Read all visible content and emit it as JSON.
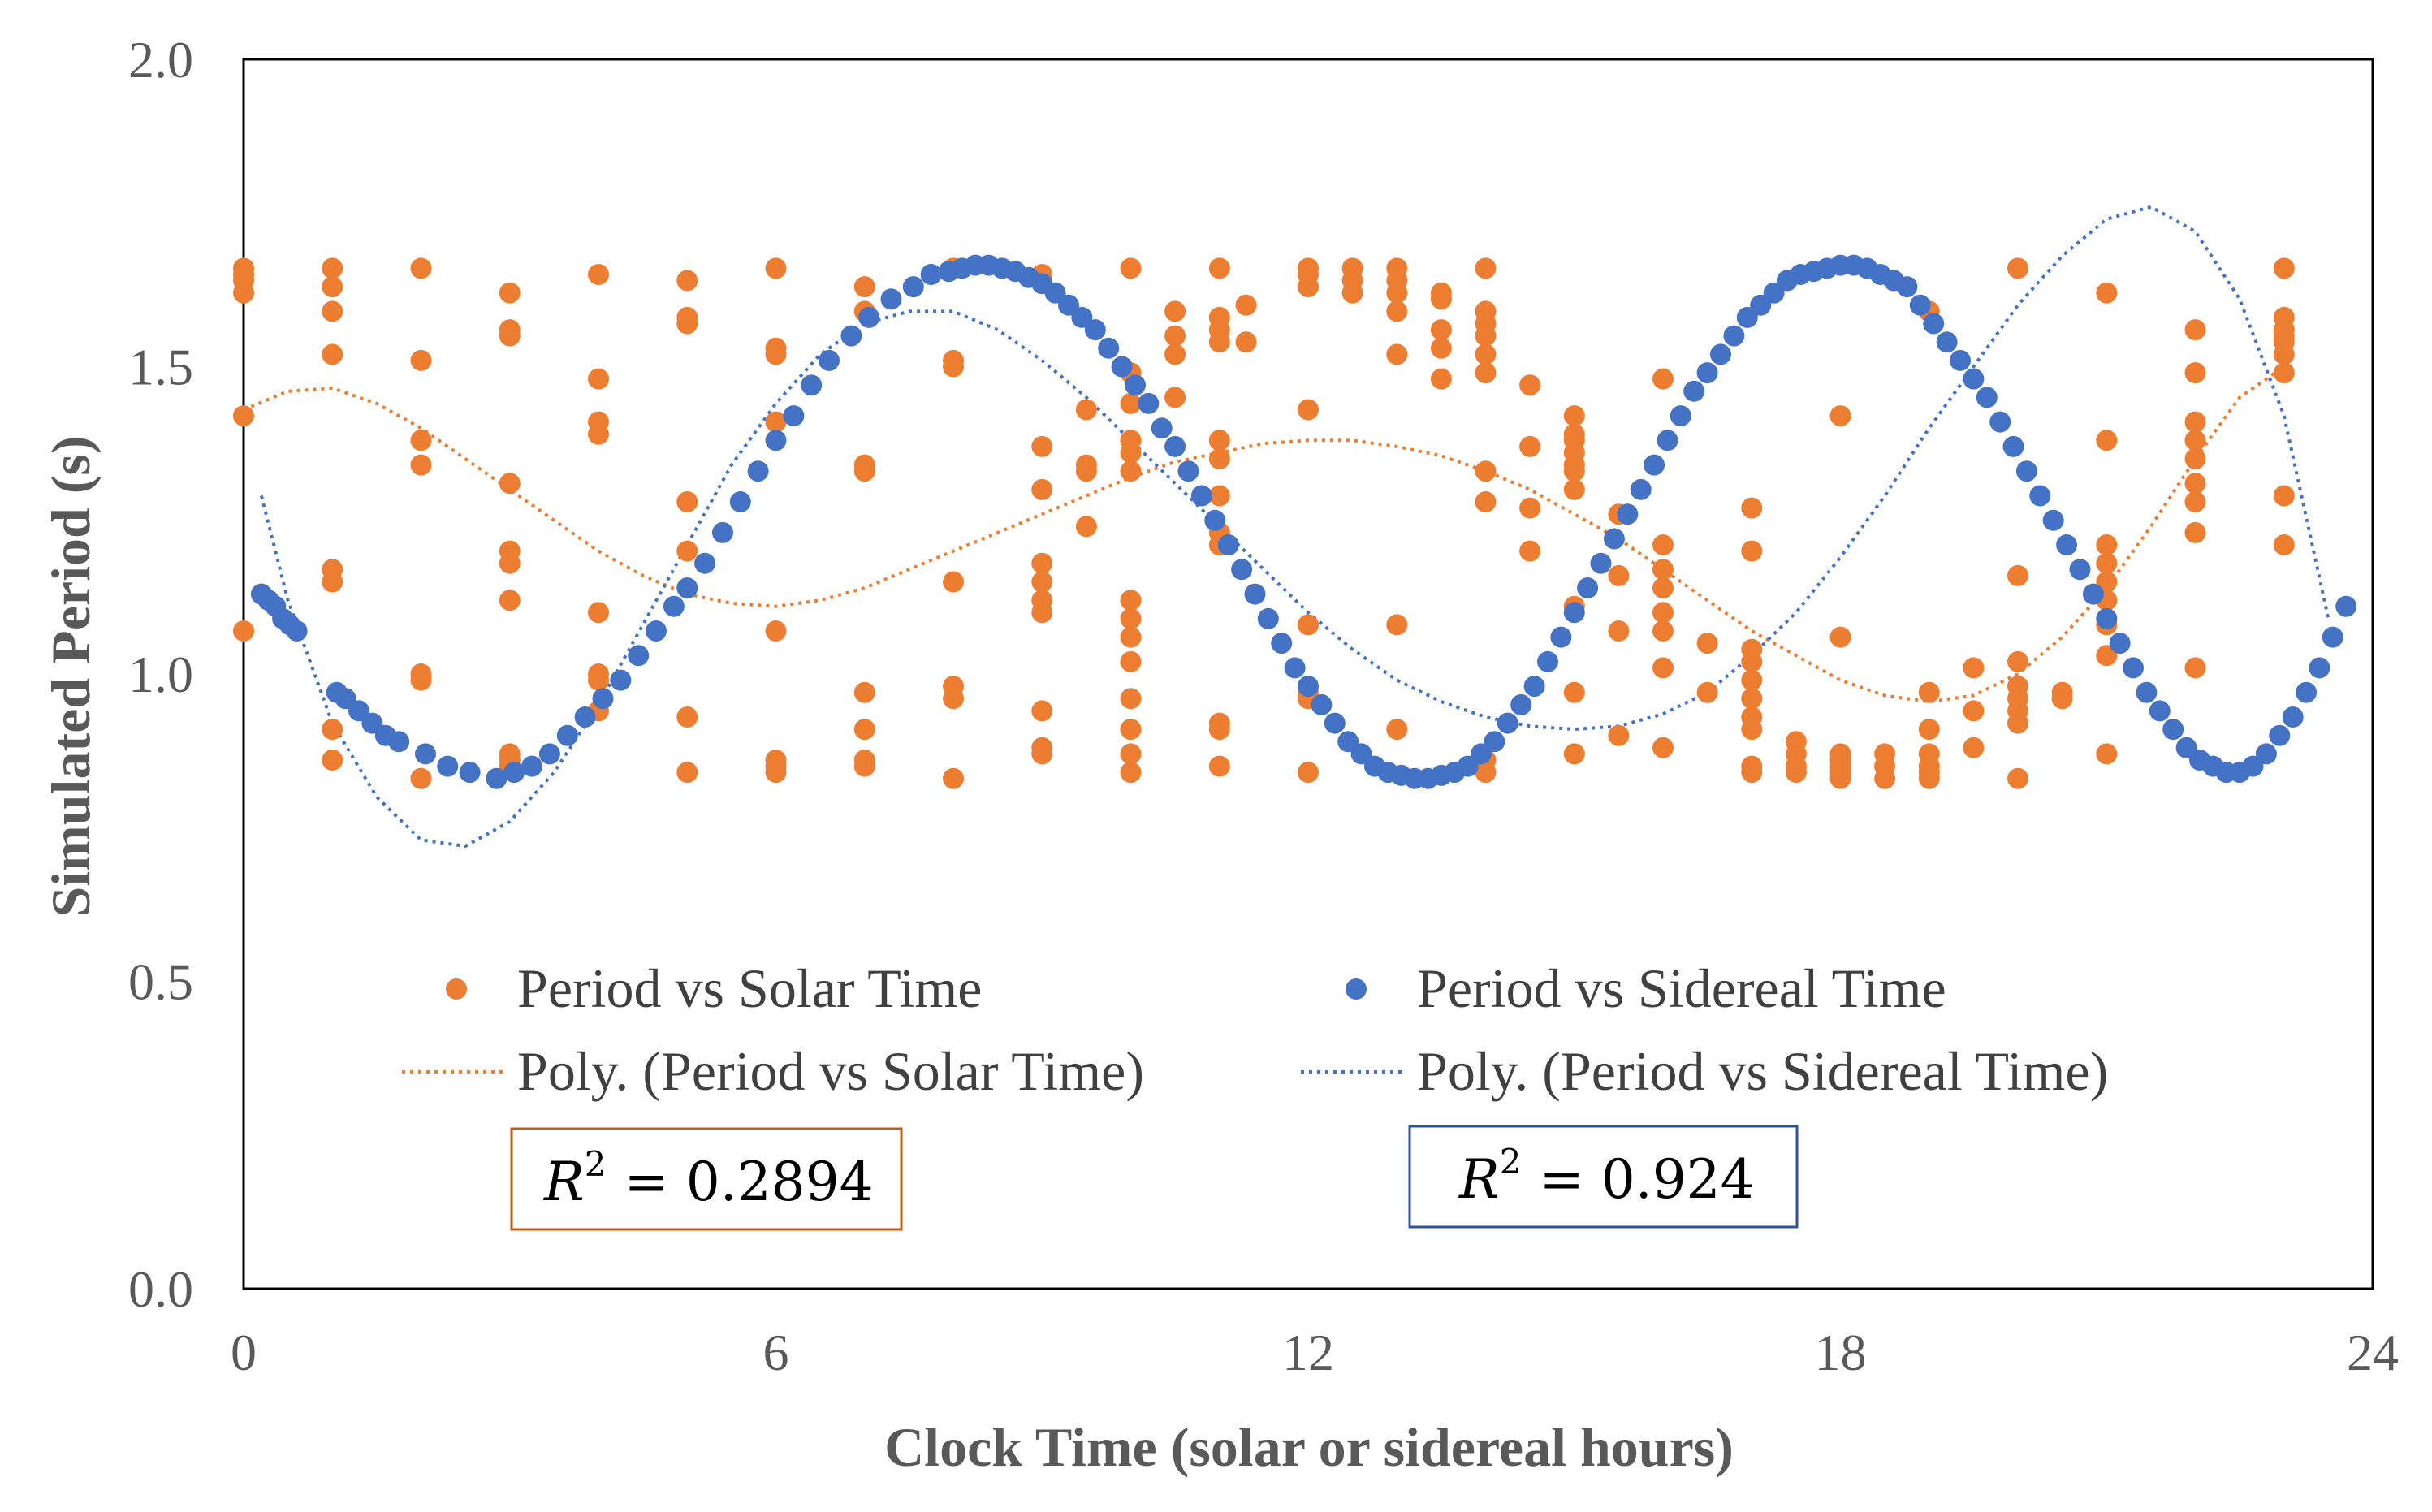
{
  "chart_data": {
    "type": "scatter",
    "xlabel": "Clock Time (solar or sidereal hours)",
    "ylabel": "Simulated Period (s)",
    "xlim": [
      0,
      24
    ],
    "ylim": [
      0.0,
      2.0
    ],
    "xticks": [
      0,
      6,
      12,
      18,
      24
    ],
    "xtick_labels": [
      "0",
      "6",
      "12",
      "18",
      "24"
    ],
    "yticks": [
      0.0,
      0.5,
      1.0,
      1.5,
      2.0
    ],
    "ytick_labels": [
      "0.0",
      "0.5",
      "1.0",
      "1.5",
      "2.0"
    ],
    "colors": {
      "solar": "#ED7D31",
      "sidereal": "#4472C4"
    },
    "series": [
      {
        "name": "Period vs Solar Time",
        "kind": "markers",
        "x": [
          0,
          0,
          0,
          0,
          0,
          0,
          1,
          1,
          1,
          1,
          1,
          1,
          1,
          1,
          2,
          2,
          2,
          2,
          2,
          2,
          2,
          3,
          3,
          3,
          3,
          3,
          3,
          3,
          3,
          3,
          3,
          4,
          4,
          4,
          4,
          4,
          4,
          4,
          4,
          5,
          5,
          5,
          5,
          5,
          5,
          5,
          6,
          6,
          6,
          6,
          6,
          6,
          6,
          6,
          7,
          7,
          7,
          7,
          7,
          7,
          7,
          7,
          8,
          8,
          8,
          8,
          8,
          8,
          8,
          9,
          9,
          9,
          9,
          9,
          9,
          9,
          9,
          9,
          9,
          9.5,
          9.5,
          9.5,
          9.5,
          10,
          10,
          10,
          10,
          10,
          10,
          10,
          10,
          10,
          10,
          10,
          10,
          10,
          10,
          10.5,
          10.5,
          10.5,
          10.5,
          11,
          11,
          11,
          11,
          11,
          11,
          11,
          11,
          11,
          11,
          11,
          11,
          11.3,
          11.3,
          12,
          12,
          12,
          12,
          12,
          12,
          12,
          12,
          12.5,
          12.5,
          12.5,
          13,
          13,
          13,
          13,
          13,
          13,
          13,
          13.5,
          13.5,
          13.5,
          13.5,
          13.5,
          14,
          14,
          14,
          14,
          14,
          14,
          14,
          14,
          14,
          14,
          14.5,
          14.5,
          14.5,
          14.5,
          15,
          15,
          15,
          15,
          15,
          15,
          15,
          15,
          15,
          15,
          15.5,
          15.5,
          15.5,
          15.5,
          16,
          16,
          16,
          16,
          16,
          16,
          16,
          16,
          16.5,
          16.5,
          17,
          17,
          17,
          17,
          17,
          17,
          17,
          17,
          17,
          17,
          17.5,
          17.5,
          17.5,
          17.5,
          18,
          18,
          18,
          18,
          18,
          18,
          18,
          18.5,
          18.5,
          18.5,
          19,
          19,
          19,
          19,
          19,
          19,
          19,
          19.5,
          19.5,
          19.5,
          20,
          20,
          20,
          20,
          20,
          20,
          20,
          20,
          20.5,
          20.5,
          21,
          21,
          21,
          21,
          21,
          21,
          21,
          21,
          21,
          22,
          22,
          22,
          22,
          22,
          22,
          22,
          22,
          22,
          23,
          23,
          23,
          23,
          23,
          23,
          23,
          23,
          23
        ],
        "y": [
          1.66,
          1.64,
          1.62,
          1.42,
          1.07,
          1.65,
          1.66,
          1.63,
          1.59,
          1.52,
          1.17,
          1.15,
          0.91,
          0.86,
          1.66,
          1.51,
          1.38,
          1.34,
          1.0,
          0.99,
          0.83,
          1.62,
          1.56,
          1.55,
          1.31,
          1.2,
          1.18,
          1.12,
          0.87,
          0.86,
          0.85,
          1.65,
          1.48,
          1.41,
          1.39,
          1.1,
          1.0,
          0.94,
          0.99,
          1.64,
          1.58,
          1.57,
          1.28,
          1.2,
          0.93,
          0.84,
          1.66,
          1.53,
          1.52,
          1.41,
          1.07,
          0.85,
          0.84,
          0.86,
          1.63,
          1.59,
          1.34,
          1.33,
          0.97,
          0.91,
          0.86,
          0.85,
          1.66,
          1.51,
          1.5,
          1.15,
          0.98,
          0.96,
          0.83,
          1.65,
          1.37,
          1.3,
          1.18,
          1.15,
          1.12,
          1.1,
          0.94,
          0.88,
          0.87,
          1.43,
          1.34,
          1.24,
          1.33,
          1.66,
          1.49,
          1.44,
          1.38,
          1.36,
          1.33,
          1.12,
          1.09,
          1.06,
          1.02,
          0.96,
          0.91,
          0.87,
          0.84,
          1.59,
          1.52,
          1.45,
          1.55,
          1.66,
          1.58,
          1.56,
          1.54,
          1.38,
          1.35,
          1.29,
          1.23,
          1.21,
          0.92,
          0.91,
          0.85,
          1.6,
          1.54,
          1.66,
          1.65,
          1.63,
          1.43,
          1.08,
          0.97,
          0.96,
          0.84,
          1.66,
          1.64,
          1.62,
          1.66,
          1.64,
          1.62,
          1.59,
          1.52,
          1.08,
          0.91,
          1.62,
          1.61,
          1.56,
          1.48,
          1.53,
          1.66,
          1.59,
          1.57,
          1.55,
          1.52,
          1.49,
          1.33,
          1.28,
          0.86,
          0.84,
          1.47,
          1.37,
          1.27,
          1.2,
          1.42,
          1.39,
          1.36,
          1.33,
          1.3,
          1.11,
          0.97,
          0.87,
          1.38,
          1.34,
          1.26,
          1.16,
          1.07,
          0.9,
          1.48,
          1.21,
          1.17,
          1.14,
          1.1,
          1.07,
          1.01,
          0.88,
          1.05,
          0.97,
          1.27,
          1.2,
          1.04,
          1.02,
          0.99,
          0.96,
          0.93,
          0.91,
          0.85,
          0.84,
          0.89,
          0.87,
          0.85,
          0.84,
          1.42,
          1.06,
          0.87,
          0.86,
          0.85,
          0.84,
          0.83,
          0.87,
          0.85,
          0.83,
          1.59,
          0.97,
          0.91,
          0.87,
          0.85,
          0.84,
          0.83,
          1.01,
          0.94,
          0.88,
          1.66,
          1.16,
          1.02,
          0.98,
          0.96,
          0.94,
          0.92,
          0.83,
          0.97,
          0.96,
          1.62,
          1.38,
          1.21,
          1.18,
          1.15,
          1.12,
          1.08,
          1.03,
          0.87,
          1.56,
          1.49,
          1.41,
          1.38,
          1.35,
          1.31,
          1.28,
          1.23,
          1.01,
          1.66,
          1.58,
          1.56,
          1.54,
          1.52,
          1.49,
          1.29,
          1.21,
          1.55
        ]
      },
      {
        "name": "Period vs Sidereal Time",
        "kind": "markers",
        "x": [
          0.2,
          0.28,
          0.36,
          0.44,
          0.52,
          0.6,
          1.05,
          1.15,
          1.3,
          1.45,
          1.6,
          1.75,
          2.05,
          2.3,
          2.55,
          2.85,
          3.05,
          3.25,
          3.45,
          3.65,
          3.85,
          4.05,
          4.25,
          4.45,
          4.65,
          4.85,
          5.0,
          5.2,
          5.4,
          5.6,
          5.8,
          6.0,
          6.2,
          6.4,
          6.6,
          6.85,
          7.05,
          7.3,
          7.55,
          7.75,
          7.95,
          8.1,
          8.25,
          8.4,
          8.55,
          8.7,
          8.85,
          9.0,
          9.15,
          9.3,
          9.45,
          9.6,
          9.75,
          9.9,
          10.05,
          10.2,
          10.35,
          10.5,
          10.65,
          10.8,
          10.95,
          11.1,
          11.25,
          11.4,
          11.55,
          11.7,
          11.85,
          12.0,
          12.15,
          12.3,
          12.45,
          12.6,
          12.75,
          12.9,
          13.05,
          13.2,
          13.35,
          13.5,
          13.65,
          13.8,
          13.95,
          14.1,
          14.25,
          14.4,
          14.55,
          14.7,
          14.85,
          15.0,
          15.15,
          15.3,
          15.45,
          15.6,
          15.75,
          15.9,
          16.05,
          16.2,
          16.35,
          16.5,
          16.65,
          16.8,
          16.95,
          17.1,
          17.25,
          17.4,
          17.55,
          17.7,
          17.85,
          18.0,
          18.15,
          18.3,
          18.45,
          18.6,
          18.75,
          18.9,
          19.05,
          19.2,
          19.35,
          19.5,
          19.65,
          19.8,
          19.95,
          20.1,
          20.25,
          20.4,
          20.55,
          20.7,
          20.85,
          21.0,
          21.15,
          21.3,
          21.45,
          21.6,
          21.75,
          21.9,
          22.05,
          22.2,
          22.35,
          22.5,
          22.65,
          22.8,
          22.95,
          23.1,
          23.25,
          23.4,
          23.55,
          23.7
        ],
        "y": [
          1.13,
          1.12,
          1.11,
          1.09,
          1.08,
          1.07,
          0.97,
          0.96,
          0.94,
          0.92,
          0.9,
          0.89,
          0.87,
          0.85,
          0.84,
          0.83,
          0.84,
          0.85,
          0.87,
          0.9,
          0.93,
          0.96,
          0.99,
          1.03,
          1.07,
          1.11,
          1.14,
          1.18,
          1.23,
          1.28,
          1.33,
          1.38,
          1.42,
          1.47,
          1.51,
          1.55,
          1.58,
          1.61,
          1.63,
          1.65,
          1.655,
          1.66,
          1.665,
          1.665,
          1.66,
          1.655,
          1.645,
          1.635,
          1.62,
          1.6,
          1.58,
          1.56,
          1.53,
          1.5,
          1.47,
          1.44,
          1.4,
          1.37,
          1.33,
          1.29,
          1.25,
          1.21,
          1.17,
          1.13,
          1.09,
          1.05,
          1.01,
          0.98,
          0.95,
          0.92,
          0.89,
          0.87,
          0.85,
          0.84,
          0.835,
          0.83,
          0.83,
          0.835,
          0.84,
          0.85,
          0.87,
          0.89,
          0.92,
          0.95,
          0.98,
          1.02,
          1.06,
          1.1,
          1.14,
          1.18,
          1.22,
          1.26,
          1.3,
          1.34,
          1.38,
          1.42,
          1.46,
          1.49,
          1.52,
          1.55,
          1.58,
          1.6,
          1.62,
          1.64,
          1.65,
          1.655,
          1.66,
          1.665,
          1.665,
          1.66,
          1.65,
          1.64,
          1.63,
          1.6,
          1.57,
          1.54,
          1.51,
          1.48,
          1.45,
          1.41,
          1.37,
          1.33,
          1.29,
          1.25,
          1.21,
          1.17,
          1.13,
          1.09,
          1.05,
          1.01,
          0.97,
          0.94,
          0.91,
          0.88,
          0.86,
          0.85,
          0.84,
          0.84,
          0.85,
          0.87,
          0.9,
          0.93,
          0.97,
          1.01,
          1.06,
          1.11
        ]
      },
      {
        "name": "Poly. (Period vs Solar Time)",
        "kind": "trendline",
        "x": [
          0,
          0.5,
          1,
          1.5,
          2,
          2.5,
          3,
          3.5,
          4,
          4.5,
          5,
          5.5,
          6,
          6.5,
          7,
          7.5,
          8,
          8.5,
          9,
          9.5,
          10,
          10.5,
          11,
          11.5,
          12,
          12.5,
          13,
          13.5,
          14,
          14.5,
          15,
          15.5,
          16,
          16.5,
          17,
          17.5,
          18,
          18.5,
          19,
          19.5,
          20,
          20.5,
          21,
          21.5,
          22,
          22.5,
          23
        ],
        "y": [
          1.43,
          1.46,
          1.465,
          1.44,
          1.4,
          1.35,
          1.3,
          1.25,
          1.2,
          1.16,
          1.13,
          1.115,
          1.11,
          1.12,
          1.14,
          1.17,
          1.2,
          1.23,
          1.26,
          1.29,
          1.32,
          1.345,
          1.36,
          1.375,
          1.38,
          1.38,
          1.37,
          1.355,
          1.33,
          1.3,
          1.26,
          1.22,
          1.17,
          1.12,
          1.07,
          1.03,
          0.99,
          0.965,
          0.955,
          0.965,
          1.0,
          1.06,
          1.14,
          1.24,
          1.35,
          1.45,
          1.5
        ]
      },
      {
        "name": "Poly. (Period vs Sidereal Time)",
        "kind": "trendline",
        "x": [
          0.2,
          0.5,
          1,
          1.5,
          2,
          2.5,
          3,
          3.5,
          4,
          4.5,
          5,
          5.5,
          6,
          6.5,
          7,
          7.5,
          8,
          8.5,
          9,
          9.5,
          10,
          10.5,
          11,
          11.5,
          12,
          12.5,
          13,
          13.5,
          14,
          14.5,
          15,
          15.5,
          16,
          16.5,
          17,
          17.5,
          18,
          18.5,
          19,
          19.5,
          20,
          20.5,
          21,
          21.5,
          22,
          22.5,
          23,
          23.5
        ],
        "y": [
          1.29,
          1.12,
          0.92,
          0.8,
          0.73,
          0.72,
          0.76,
          0.84,
          0.95,
          1.08,
          1.21,
          1.34,
          1.44,
          1.52,
          1.57,
          1.59,
          1.59,
          1.56,
          1.51,
          1.45,
          1.38,
          1.31,
          1.24,
          1.17,
          1.1,
          1.04,
          0.99,
          0.955,
          0.93,
          0.915,
          0.91,
          0.915,
          0.935,
          0.97,
          1.03,
          1.1,
          1.19,
          1.29,
          1.4,
          1.5,
          1.6,
          1.68,
          1.74,
          1.76,
          1.72,
          1.61,
          1.42,
          1.09
        ]
      }
    ],
    "legend": {
      "position": "bottom-inside",
      "entries": [
        "Period vs Solar Time",
        "Period vs Sidereal Time",
        "Poly. (Period vs Solar Time)",
        "Poly. (Period vs Sidereal Time)"
      ]
    },
    "annotations": [
      {
        "series": "Period vs Solar Time",
        "label": "R",
        "superscript": "2",
        "text": "= 0.2894"
      },
      {
        "series": "Period vs Sidereal Time",
        "label": "R",
        "superscript": "2",
        "text": "= 0.924"
      }
    ]
  }
}
